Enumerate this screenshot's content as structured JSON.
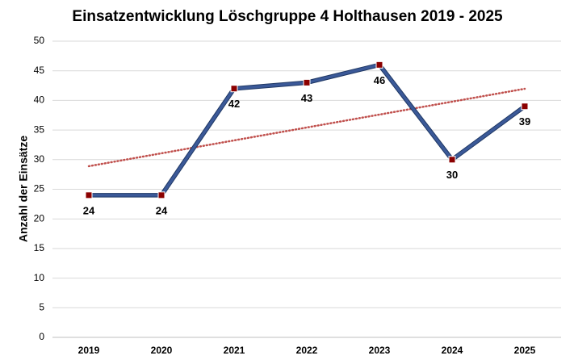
{
  "chart_data": {
    "type": "line",
    "title": "Einsatzentwicklung Löschgruppe 4 Holthausen 2019 - 2025",
    "y_label": "Anzahl der Einsätze",
    "categories": [
      "2019",
      "2020",
      "2021",
      "2022",
      "2023",
      "2024",
      "2025"
    ],
    "series": [
      {
        "name": "Einsätze",
        "color": "#3b5998",
        "marker_color": "#8b0000",
        "values": [
          24,
          24,
          42,
          43,
          46,
          30,
          39
        ]
      }
    ],
    "trendline": {
      "type": "linear",
      "color": "#c0504d"
    },
    "ylim": [
      0,
      50
    ],
    "yticks": [
      0,
      5,
      10,
      15,
      20,
      25,
      30,
      35,
      40,
      45,
      50
    ],
    "grid": true
  }
}
